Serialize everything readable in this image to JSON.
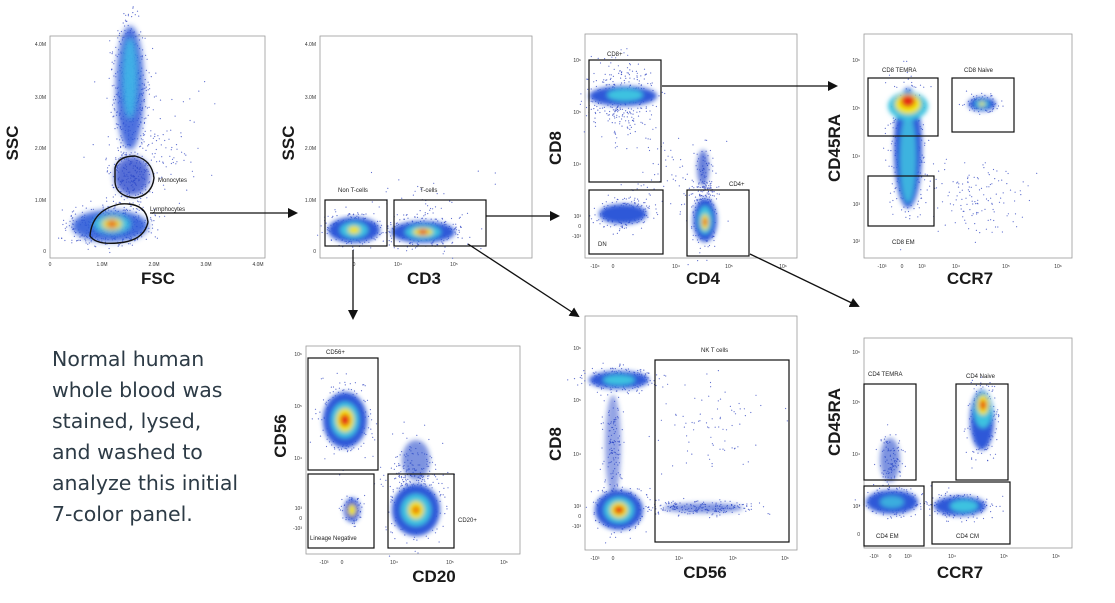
{
  "caption": {
    "lines": [
      "Normal human",
      "whole blood was",
      "stained, lysed,",
      "and washed to",
      "analyze this initial",
      "7-color panel."
    ]
  },
  "colors": {
    "background": "#ffffff",
    "dots": "#2a3fbf",
    "density_low": "#3050d0",
    "density_mid": "#20c0e0",
    "density_high": "#ffe000",
    "density_peak": "#e01010",
    "caption_text": "#2d3b46"
  },
  "plots": [
    {
      "id": "plot1",
      "xlabel": "FSC",
      "ylabel": "SSC",
      "yticks": [
        "4.0M",
        "3.0M",
        "2.0M",
        "1.0M",
        "0"
      ],
      "xticks": [
        "0",
        "1.0M",
        "2.0M",
        "3.0M",
        "4.0M"
      ],
      "gates": [
        {
          "name": "monocytes",
          "label": "Monocytes"
        },
        {
          "name": "lymphocytes",
          "label": "Lymphocytes"
        }
      ]
    },
    {
      "id": "plot2",
      "xlabel": "CD3",
      "ylabel": "SSC",
      "yticks": [
        "4.0M",
        "3.0M",
        "2.0M",
        "1.0M",
        "0"
      ],
      "xticks": [
        "0",
        "10⁴",
        "10⁵"
      ],
      "gates": [
        {
          "name": "non-t-cells",
          "label": "Non T-cells"
        },
        {
          "name": "t-cells",
          "label": "T-cells"
        }
      ]
    },
    {
      "id": "plot3",
      "xlabel": "CD4",
      "ylabel": "CD8",
      "yticks": [
        "10⁶",
        "10⁵",
        "10⁴",
        "10³",
        "0",
        "-10³"
      ],
      "xticks": [
        "-10⁴",
        "0",
        "10⁴",
        "10⁵",
        "10⁶"
      ],
      "gates": [
        {
          "name": "cd8-plus",
          "label": "CD8+"
        },
        {
          "name": "dn",
          "label": "DN"
        },
        {
          "name": "cd4-plus",
          "label": "CD4+"
        }
      ]
    },
    {
      "id": "plot4",
      "xlabel": "CCR7",
      "ylabel": "CD45RA",
      "yticks": [
        "10⁶",
        "10⁵",
        "10⁴",
        "10³",
        "10²"
      ],
      "xticks": [
        "-10³",
        "0",
        "10³",
        "10⁴",
        "10⁵",
        "10⁶"
      ],
      "gates": [
        {
          "name": "cd8-temra",
          "label": "CD8 TEMRA"
        },
        {
          "name": "cd8-naive",
          "label": "CD8 Naive"
        },
        {
          "name": "cd8-em",
          "label": "CD8 EM"
        }
      ]
    },
    {
      "id": "plot5",
      "xlabel": "CD20",
      "ylabel": "CD56",
      "yticks": [
        "10⁶",
        "10⁵",
        "10⁴",
        "10³",
        "0",
        "-10³"
      ],
      "xticks": [
        "-10³",
        "0",
        "10⁴",
        "10⁵",
        "10⁶"
      ],
      "gates": [
        {
          "name": "cd56-plus",
          "label": "CD56+"
        },
        {
          "name": "lineage-negative",
          "label": "Lineage Negative"
        },
        {
          "name": "cd20-plus",
          "label": "CD20+"
        }
      ]
    },
    {
      "id": "plot6",
      "xlabel": "CD56",
      "ylabel": "CD8",
      "yticks": [
        "10⁶",
        "10⁵",
        "10⁴",
        "10³",
        "0",
        "-10³"
      ],
      "xticks": [
        "-10³",
        "0",
        "10⁴",
        "10⁵",
        "10⁶"
      ],
      "gates": [
        {
          "name": "nk-t-cells",
          "label": "NK T cells"
        }
      ]
    },
    {
      "id": "plot7",
      "xlabel": "CCR7",
      "ylabel": "CD45RA",
      "yticks": [
        "10⁶",
        "10⁵",
        "10⁴",
        "10³",
        "0"
      ],
      "xticks": [
        "-10³",
        "0",
        "10³",
        "10⁴",
        "10⁵",
        "10⁶"
      ],
      "gates": [
        {
          "name": "cd4-temra",
          "label": "CD4 TEMRA"
        },
        {
          "name": "cd4-naive",
          "label": "CD4 Naive"
        },
        {
          "name": "cd4-em",
          "label": "CD4 EM"
        },
        {
          "name": "cd4-cm",
          "label": "CD4 CM"
        }
      ]
    }
  ]
}
